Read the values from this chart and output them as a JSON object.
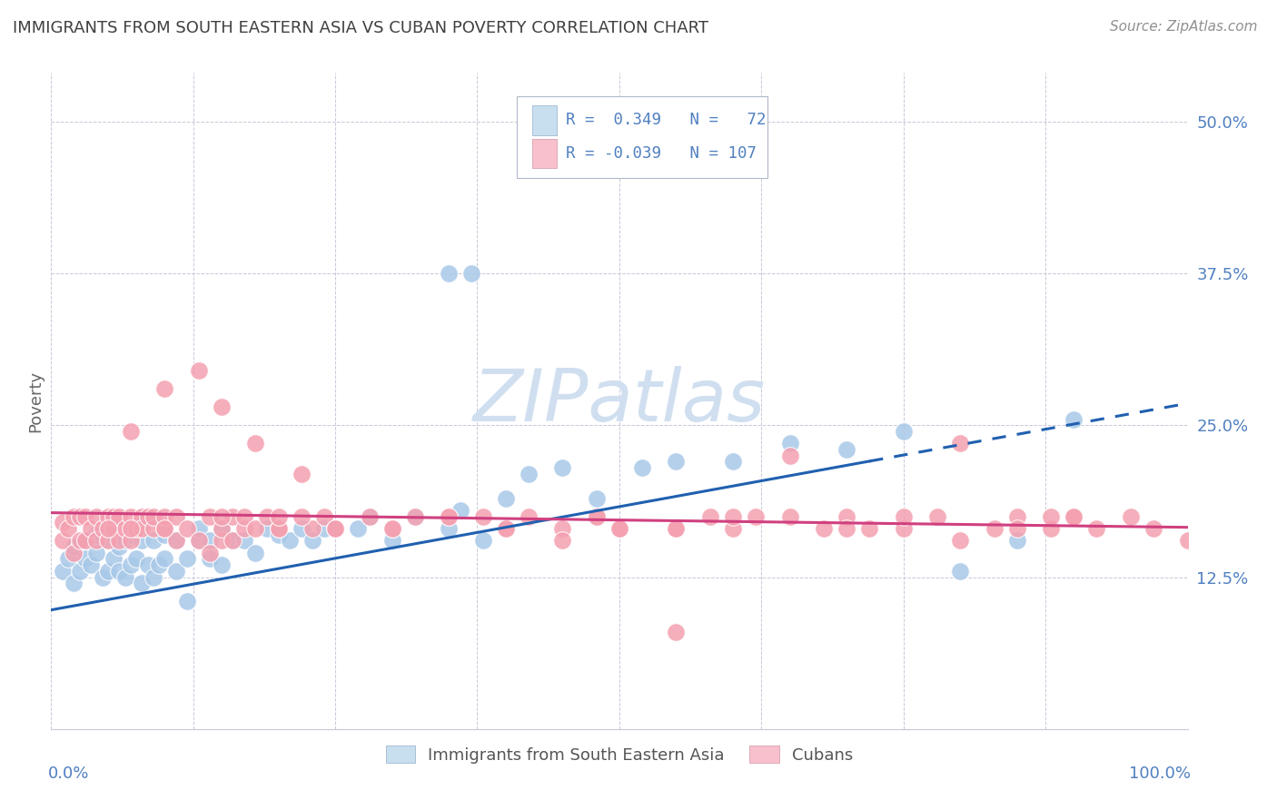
{
  "title": "IMMIGRANTS FROM SOUTH EASTERN ASIA VS CUBAN POVERTY CORRELATION CHART",
  "source": "Source: ZipAtlas.com",
  "ylabel": "Poverty",
  "xlim": [
    0.0,
    1.0
  ],
  "ylim": [
    0.0,
    0.54
  ],
  "legend_label_blue": "Immigrants from South Eastern Asia",
  "legend_label_pink": "Cubans",
  "blue_color": "#a8c8e8",
  "pink_color": "#f4a0b0",
  "blue_face": "#c8dff0",
  "pink_face": "#f8c0cc",
  "line_blue_color": "#2060b0",
  "line_pink_color": "#d04080",
  "watermark_color": "#d0dff0",
  "background_color": "#ffffff",
  "grid_color": "#c8c8d8",
  "tick_color": "#5080c0",
  "title_color": "#404040",
  "source_color": "#909090",
  "blue_x": [
    0.01,
    0.015,
    0.02,
    0.02,
    0.025,
    0.03,
    0.03,
    0.035,
    0.04,
    0.04,
    0.045,
    0.05,
    0.05,
    0.055,
    0.055,
    0.06,
    0.06,
    0.065,
    0.065,
    0.07,
    0.07,
    0.075,
    0.08,
    0.08,
    0.085,
    0.09,
    0.09,
    0.095,
    0.1,
    0.1,
    0.11,
    0.11,
    0.12,
    0.12,
    0.13,
    0.13,
    0.14,
    0.14,
    0.15,
    0.15,
    0.16,
    0.17,
    0.18,
    0.19,
    0.2,
    0.21,
    0.22,
    0.23,
    0.24,
    0.25,
    0.27,
    0.28,
    0.3,
    0.32,
    0.35,
    0.36,
    0.38,
    0.4,
    0.42,
    0.45,
    0.48,
    0.52,
    0.55,
    0.6,
    0.65,
    0.7,
    0.75,
    0.8,
    0.85,
    0.9,
    0.35,
    0.37
  ],
  "blue_y": [
    0.13,
    0.14,
    0.12,
    0.15,
    0.13,
    0.14,
    0.155,
    0.135,
    0.145,
    0.16,
    0.125,
    0.13,
    0.155,
    0.14,
    0.16,
    0.13,
    0.15,
    0.125,
    0.155,
    0.135,
    0.16,
    0.14,
    0.12,
    0.155,
    0.135,
    0.125,
    0.155,
    0.135,
    0.14,
    0.16,
    0.13,
    0.155,
    0.105,
    0.14,
    0.155,
    0.165,
    0.14,
    0.155,
    0.135,
    0.165,
    0.155,
    0.155,
    0.145,
    0.165,
    0.16,
    0.155,
    0.165,
    0.155,
    0.165,
    0.165,
    0.165,
    0.175,
    0.155,
    0.175,
    0.165,
    0.18,
    0.155,
    0.19,
    0.21,
    0.215,
    0.19,
    0.215,
    0.22,
    0.22,
    0.235,
    0.23,
    0.245,
    0.13,
    0.155,
    0.255,
    0.375,
    0.375
  ],
  "pink_x": [
    0.01,
    0.01,
    0.015,
    0.02,
    0.02,
    0.025,
    0.025,
    0.03,
    0.03,
    0.035,
    0.04,
    0.04,
    0.045,
    0.05,
    0.05,
    0.055,
    0.055,
    0.06,
    0.06,
    0.065,
    0.07,
    0.07,
    0.075,
    0.08,
    0.08,
    0.085,
    0.09,
    0.09,
    0.1,
    0.1,
    0.11,
    0.11,
    0.12,
    0.13,
    0.13,
    0.14,
    0.14,
    0.15,
    0.15,
    0.16,
    0.16,
    0.17,
    0.17,
    0.18,
    0.18,
    0.19,
    0.2,
    0.22,
    0.23,
    0.24,
    0.25,
    0.28,
    0.3,
    0.32,
    0.35,
    0.38,
    0.4,
    0.42,
    0.45,
    0.48,
    0.5,
    0.55,
    0.58,
    0.6,
    0.65,
    0.68,
    0.7,
    0.75,
    0.78,
    0.8,
    0.83,
    0.85,
    0.88,
    0.9,
    0.92,
    0.95,
    0.97,
    1.0,
    0.07,
    0.1,
    0.15,
    0.2,
    0.22,
    0.25,
    0.35,
    0.45,
    0.5,
    0.55,
    0.6,
    0.65,
    0.7,
    0.75,
    0.8,
    0.85,
    0.88,
    0.9,
    0.55,
    0.62,
    0.72,
    0.48,
    0.4,
    0.3,
    0.2,
    0.15,
    0.1,
    0.07,
    0.05
  ],
  "pink_y": [
    0.155,
    0.17,
    0.165,
    0.145,
    0.175,
    0.155,
    0.175,
    0.155,
    0.175,
    0.165,
    0.155,
    0.175,
    0.165,
    0.155,
    0.175,
    0.165,
    0.175,
    0.155,
    0.175,
    0.165,
    0.155,
    0.175,
    0.165,
    0.175,
    0.165,
    0.175,
    0.165,
    0.175,
    0.165,
    0.175,
    0.155,
    0.175,
    0.165,
    0.155,
    0.295,
    0.145,
    0.175,
    0.155,
    0.165,
    0.155,
    0.175,
    0.165,
    0.175,
    0.165,
    0.235,
    0.175,
    0.165,
    0.21,
    0.165,
    0.175,
    0.165,
    0.175,
    0.165,
    0.175,
    0.175,
    0.175,
    0.165,
    0.175,
    0.165,
    0.175,
    0.165,
    0.165,
    0.175,
    0.165,
    0.175,
    0.165,
    0.175,
    0.165,
    0.175,
    0.235,
    0.165,
    0.175,
    0.165,
    0.175,
    0.165,
    0.175,
    0.165,
    0.155,
    0.165,
    0.165,
    0.175,
    0.165,
    0.175,
    0.165,
    0.175,
    0.155,
    0.165,
    0.165,
    0.175,
    0.225,
    0.165,
    0.175,
    0.155,
    0.165,
    0.175,
    0.175,
    0.08,
    0.175,
    0.165,
    0.175,
    0.165,
    0.165,
    0.175,
    0.265,
    0.28,
    0.245,
    0.165
  ],
  "blue_line_x0": 0.0,
  "blue_line_x1": 0.72,
  "blue_line_x2": 1.0,
  "blue_line_y0": 0.098,
  "blue_line_slope": 0.17,
  "pink_line_x0": 0.0,
  "pink_line_x1": 1.0,
  "pink_line_y0": 0.178,
  "pink_line_slope": -0.012
}
